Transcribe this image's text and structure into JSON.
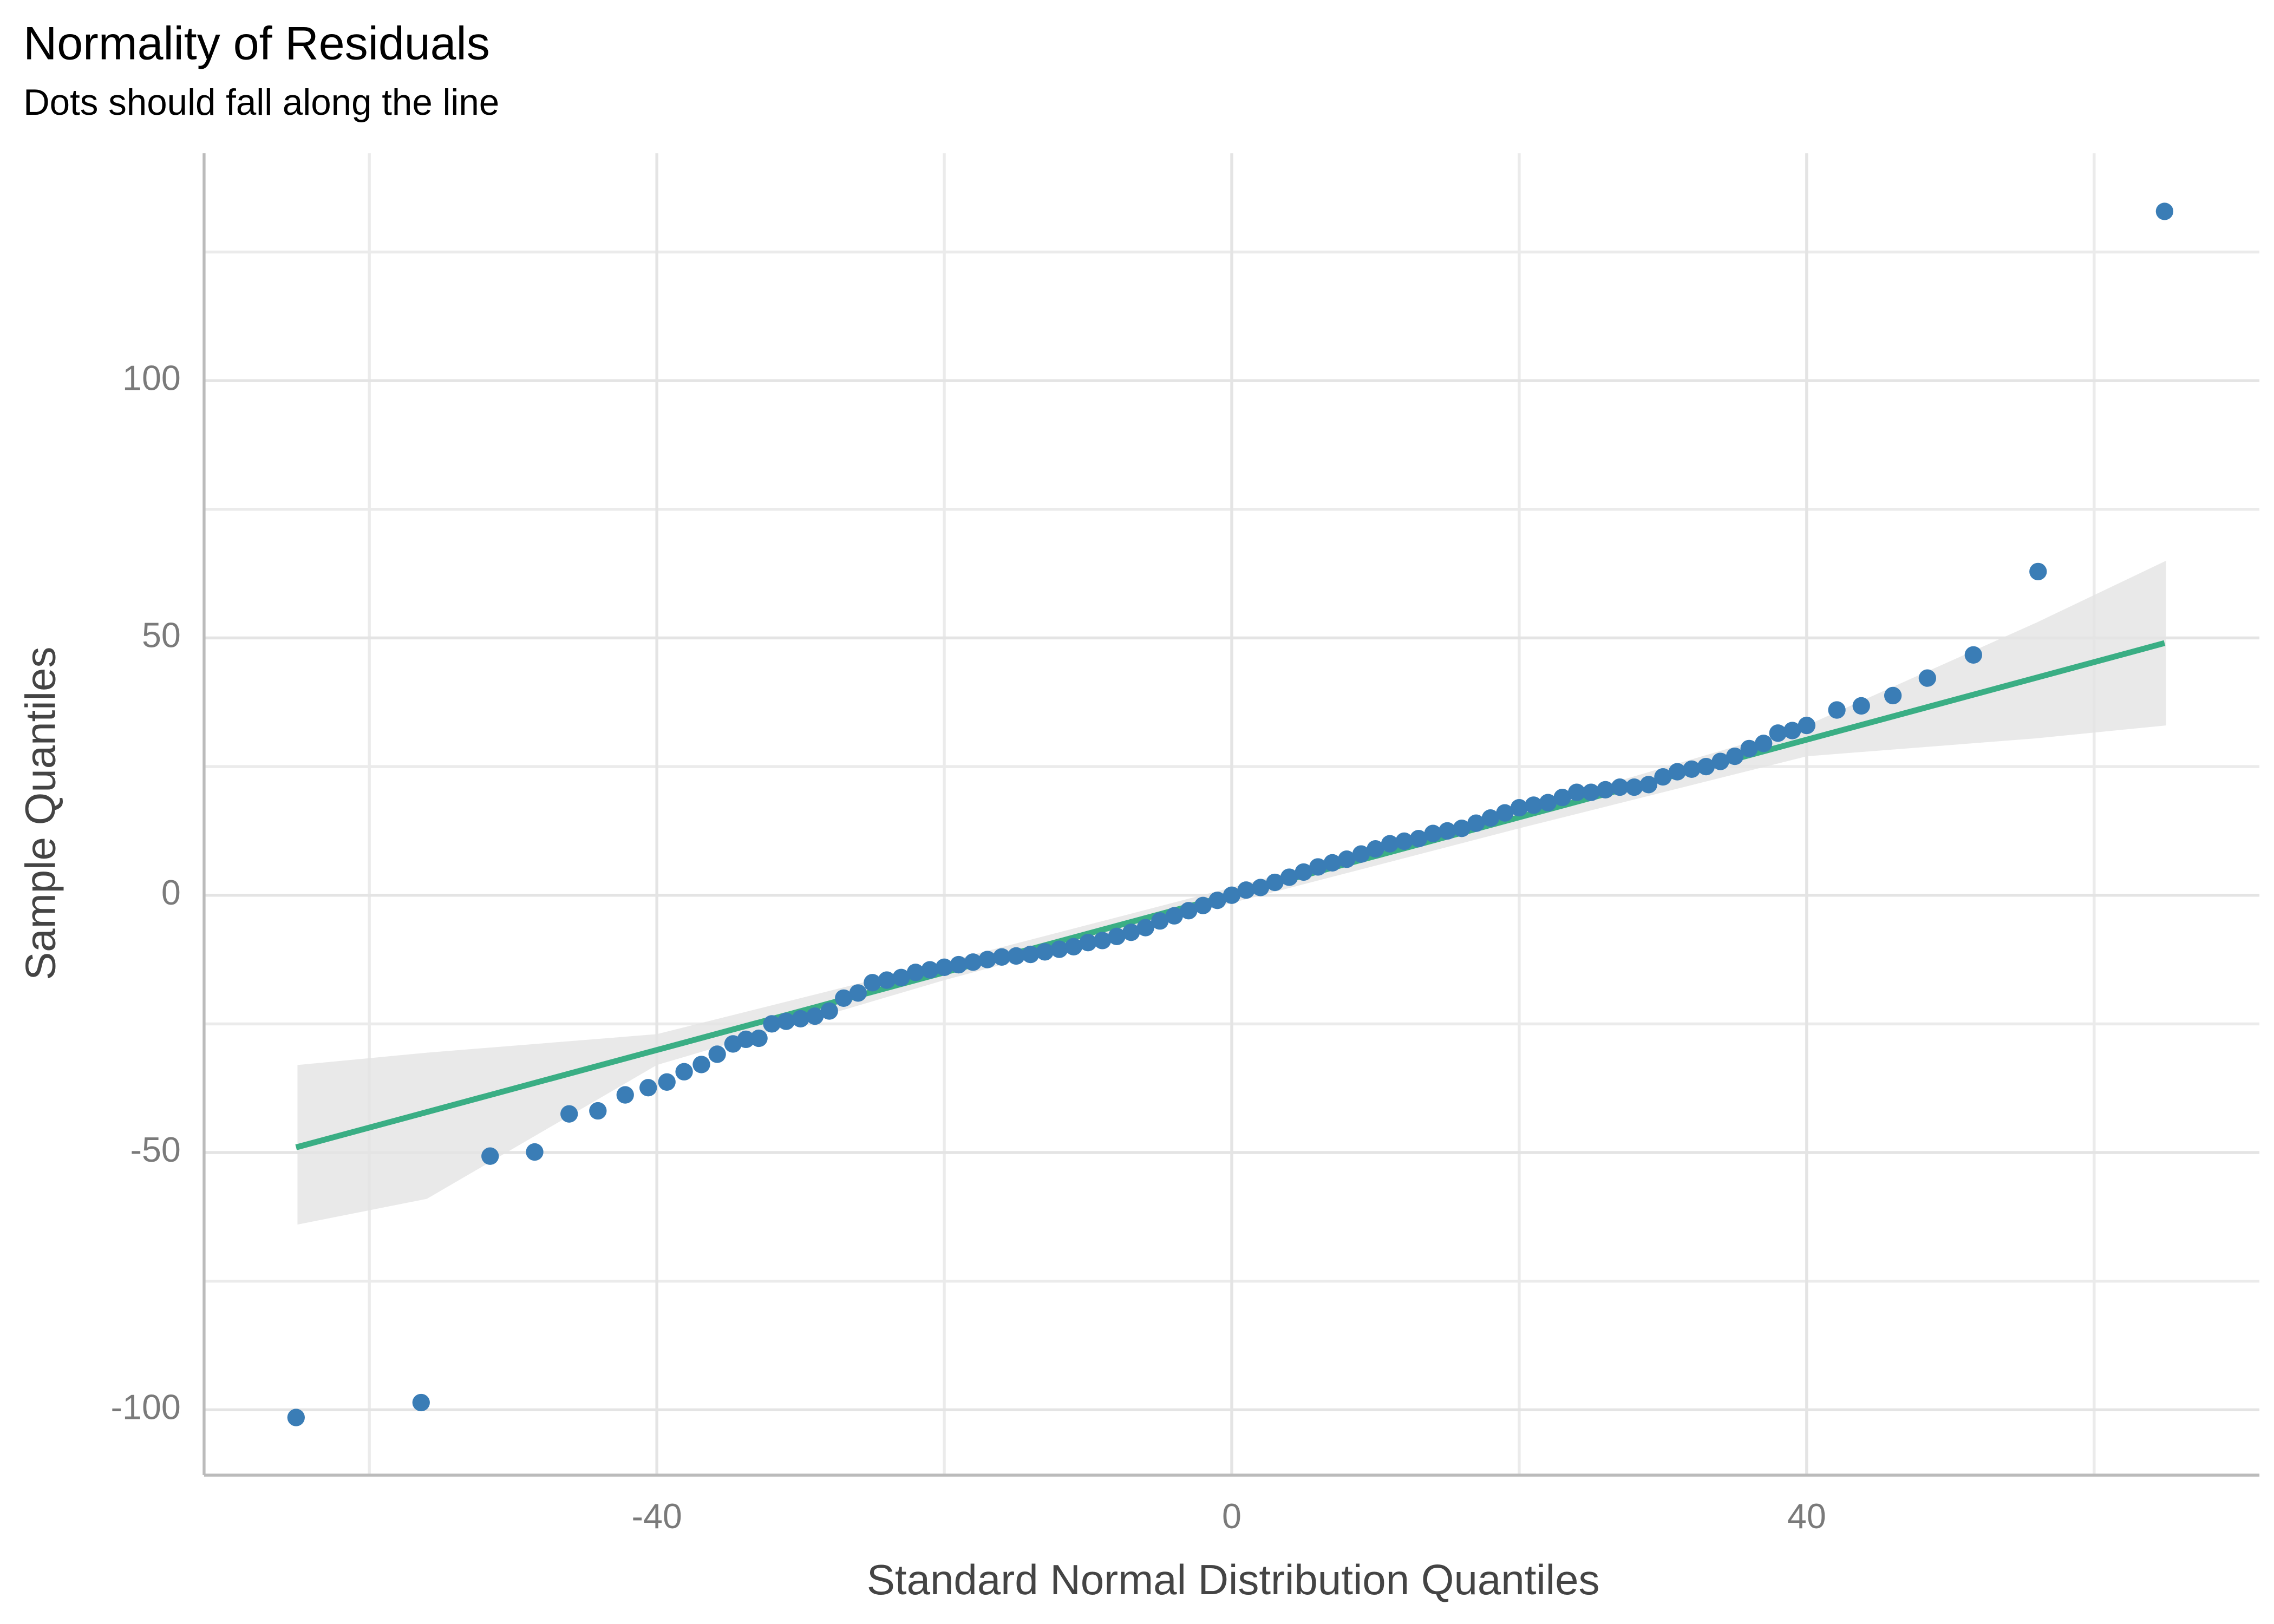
{
  "chart_data": {
    "type": "qq",
    "title": "Normality of Residuals",
    "subtitle": "Dots should fall along the line",
    "x_label": "Standard Normal Distribution Quantiles",
    "y_label": "Sample Quantiles",
    "xlim": [
      -71.5,
      71.5
    ],
    "xticks": [
      -40,
      0,
      40
    ],
    "xminor": [
      -60,
      -20,
      20,
      60
    ],
    "ylim": [
      -112.7,
      144.2
    ],
    "yticks": [
      -100,
      -50,
      0,
      50,
      100
    ],
    "yminor": [
      -75,
      -25,
      25,
      75,
      125
    ],
    "grid": true,
    "series": [
      {
        "name": "residuals",
        "color": "#3a7db6",
        "x": [
          -65.1,
          -56.4,
          -51.6,
          -48.5,
          -46.1,
          -44.1,
          -42.2,
          -40.6,
          -39.3,
          -38.1,
          -36.9,
          -35.8,
          -34.7,
          -33.8,
          -32.9,
          -32,
          -31,
          -30,
          -29,
          -28,
          -27,
          -26,
          -25,
          -24,
          -23,
          -22,
          -21,
          -20,
          -19,
          -18,
          -17,
          -16,
          -15,
          -14,
          -13,
          -12,
          -11,
          -10,
          -9,
          -8,
          -7,
          -6,
          -5,
          -4,
          -3,
          -2,
          -1,
          0,
          1,
          2,
          3,
          4,
          5,
          6,
          7,
          8,
          9,
          10,
          11,
          12,
          13,
          14,
          15,
          16,
          17,
          18,
          19,
          20,
          21,
          22,
          23,
          24,
          25,
          26,
          27,
          28,
          29,
          30,
          31,
          32,
          33,
          34,
          35,
          36,
          37,
          38,
          39,
          40,
          42.1,
          43.8,
          46,
          48.4,
          51.6,
          56.1,
          64.9
        ],
        "values": [
          -101.5,
          -98.6,
          -50.7,
          -49.9,
          -42.5,
          -41.9,
          -38.8,
          -37.4,
          -36.3,
          -34.3,
          -32.9,
          -30.9,
          -28.9,
          -28,
          -27.8,
          -25,
          -24.5,
          -24,
          -23.5,
          -22.5,
          -20,
          -19,
          -17,
          -16.5,
          -16,
          -15,
          -14.5,
          -14,
          -13.5,
          -13,
          -12.5,
          -12,
          -11.8,
          -11.5,
          -11,
          -10.5,
          -10,
          -9.2,
          -8.8,
          -8,
          -7.2,
          -6.3,
          -5,
          -4,
          -3,
          -2,
          -1,
          0,
          1,
          1.5,
          2.5,
          3.5,
          4.5,
          5.5,
          6.3,
          7,
          8,
          9,
          10,
          10.5,
          11,
          12,
          12.5,
          13,
          14,
          15,
          16,
          17,
          17.5,
          18,
          19,
          20,
          20,
          20.5,
          21,
          21,
          21.5,
          23,
          24,
          24.5,
          25,
          26,
          27,
          28.5,
          29.5,
          31.5,
          32,
          33,
          36,
          36.8,
          38.8,
          42.2,
          46.7,
          62.9,
          132.9
        ]
      }
    ],
    "fit_line": {
      "color": "#3aae84",
      "x": [
        -65.1,
        64.9
      ],
      "values": [
        -49,
        49
      ]
    },
    "band": {
      "color": "#e3e3e3",
      "x": [
        -65,
        -56,
        -40,
        -20,
        0,
        20,
        40,
        56,
        65
      ],
      "lower": [
        -64,
        -59,
        -33,
        -16.5,
        -1.5,
        13,
        27,
        30.5,
        33
      ],
      "upper": [
        -33,
        -30.6,
        -27,
        -13,
        1.5,
        16.5,
        33,
        53,
        65
      ]
    }
  }
}
